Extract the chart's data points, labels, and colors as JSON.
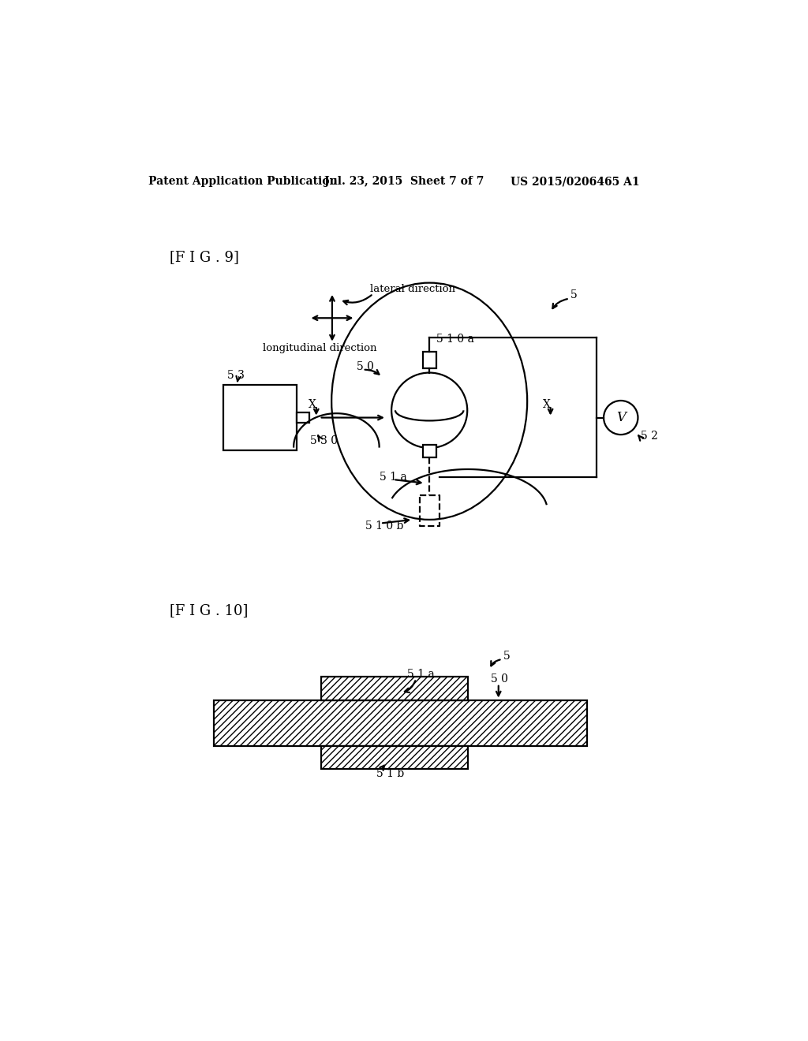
{
  "header_left": "Patent Application Publication",
  "header_mid": "Jul. 23, 2015  Sheet 7 of 7",
  "header_right": "US 2015/0206465 A1",
  "fig9_label": "[F I G . 9]",
  "fig10_label": "[F I G . 10]",
  "bg_color": "#ffffff",
  "line_color": "#000000",
  "lw": 1.6
}
